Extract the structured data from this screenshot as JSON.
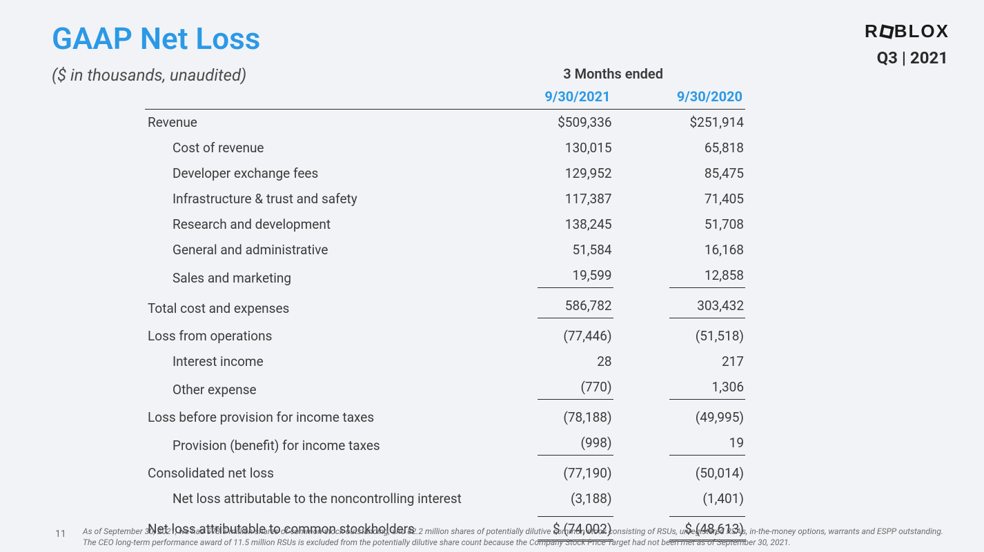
{
  "title": "GAAP Net Loss",
  "subtitle": "($ in thousands,  unaudited)",
  "logo": {
    "pre": "R",
    "post": "BLOX"
  },
  "period_label": "Q3 | 2021",
  "table": {
    "period_header": "3 Months ended",
    "dates": [
      "9/30/2021",
      "9/30/2020"
    ],
    "rows": [
      {
        "label": "Revenue",
        "indent": 0,
        "v1": "$509,336",
        "v2": "$251,914",
        "s1": "",
        "s2": ""
      },
      {
        "label": "Cost of revenue",
        "indent": 1,
        "v1": "130,015",
        "v2": "65,818",
        "s1": "",
        "s2": ""
      },
      {
        "label": "Developer exchange fees",
        "indent": 1,
        "v1": "129,952",
        "v2": "85,475",
        "s1": "",
        "s2": ""
      },
      {
        "label": "Infrastructure & trust and safety",
        "indent": 1,
        "v1": "117,387",
        "v2": "71,405",
        "s1": "",
        "s2": ""
      },
      {
        "label": "Research and development",
        "indent": 1,
        "v1": "138,245",
        "v2": "51,708",
        "s1": "",
        "s2": ""
      },
      {
        "label": "General and administrative",
        "indent": 1,
        "v1": "51,584",
        "v2": "16,168",
        "s1": "",
        "s2": ""
      },
      {
        "label": "Sales and marketing",
        "indent": 1,
        "v1": "19,599",
        "v2": "12,858",
        "s1": "bb",
        "s2": "bb"
      },
      {
        "label": "Total cost and expenses",
        "indent": 0,
        "v1": "586,782",
        "v2": "303,432",
        "s1": "bb",
        "s2": "bb"
      },
      {
        "label": "Loss from operations",
        "indent": 0,
        "v1": "(77,446)",
        "v2": "(51,518)",
        "s1": "",
        "s2": ""
      },
      {
        "label": "Interest income",
        "indent": 1,
        "v1": "28",
        "v2": "217",
        "s1": "",
        "s2": ""
      },
      {
        "label": "Other expense",
        "indent": 1,
        "v1": "(770)",
        "v2": "1,306",
        "s1": "bb",
        "s2": "bb"
      },
      {
        "label": "Loss before provision for income taxes",
        "indent": 0,
        "v1": "(78,188)",
        "v2": "(49,995)",
        "s1": "",
        "s2": ""
      },
      {
        "label": "Provision (benefit) for income taxes",
        "indent": 1,
        "v1": "(998)",
        "v2": "19",
        "s1": "bb",
        "s2": "bb"
      },
      {
        "label": "Consolidated net loss",
        "indent": 0,
        "v1": "(77,190)",
        "v2": "(50,014)",
        "s1": "",
        "s2": ""
      },
      {
        "label": "Net loss attributable to the noncontrolling interest",
        "indent": 1,
        "v1": "(3,188)",
        "v2": "(1,401)",
        "s1": "",
        "s2": ""
      },
      {
        "label": "Net loss attributable to common stockholders",
        "indent": 0,
        "v1": "$ (74,002)",
        "v2": "$ (48,613)",
        "s1": "dbl",
        "s2": "dbl"
      }
    ]
  },
  "footnote": "As of September 30, 2021, we had 578.5 million shares of common stock outstanding, and 82.2 million shares of potentially dilutive common stock consisting of RSUs, unregistered RSA's, in-the-money options, warrants and ESPP outstanding. The CEO long-term performance award of 11.5 million RSUs is excluded from the potentially dilutive share count because the Company Stock Price Target had not been met as of September 30, 2021.",
  "page_number": "11"
}
